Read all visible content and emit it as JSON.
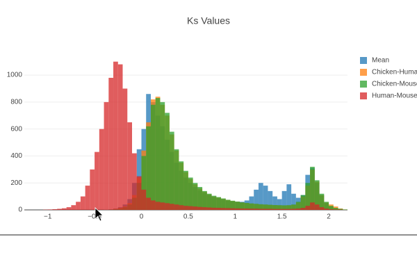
{
  "chart_data": {
    "type": "histogram",
    "title": "Ks Values",
    "bins": [
      -1.25,
      -1.2,
      -1.15,
      -1.1,
      -1.05,
      -1.0,
      -0.95,
      -0.9,
      -0.85,
      -0.8,
      -0.75,
      -0.7,
      -0.65,
      -0.6,
      -0.55,
      -0.5,
      -0.45,
      -0.4,
      -0.35,
      -0.3,
      -0.25,
      -0.2,
      -0.15,
      -0.1,
      -0.05,
      0,
      0.05,
      0.1,
      0.15,
      0.2,
      0.25,
      0.3,
      0.35,
      0.4,
      0.45,
      0.5,
      0.55,
      0.6,
      0.65,
      0.7,
      0.75,
      0.8,
      0.85,
      0.9,
      0.95,
      1.0,
      1.05,
      1.1,
      1.15,
      1.2,
      1.25,
      1.3,
      1.35,
      1.4,
      1.45,
      1.5,
      1.55,
      1.6,
      1.65,
      1.7,
      1.75,
      1.8,
      1.85,
      1.9,
      1.95,
      2.0,
      2.05,
      2.1,
      2.15,
      2.2
    ],
    "series": [
      {
        "name": "Mean",
        "color": "#1f77b4",
        "values": [
          0,
          0,
          0,
          0,
          0,
          0,
          0,
          0,
          0,
          0,
          0,
          0,
          0,
          0,
          0,
          0,
          0,
          2,
          5,
          10,
          20,
          40,
          80,
          200,
          450,
          600,
          860,
          800,
          700,
          620,
          520,
          430,
          350,
          290,
          240,
          200,
          170,
          145,
          125,
          110,
          95,
          85,
          75,
          68,
          62,
          58,
          60,
          70,
          100,
          150,
          200,
          180,
          140,
          100,
          80,
          140,
          190,
          120,
          90,
          110,
          260,
          310,
          200,
          110,
          50,
          25,
          12,
          5,
          2
        ]
      },
      {
        "name": "Chicken-Human",
        "color": "#ff7f0e",
        "values": [
          0,
          0,
          0,
          0,
          0,
          0,
          0,
          0,
          0,
          0,
          0,
          0,
          0,
          0,
          0,
          0,
          0,
          1,
          3,
          8,
          15,
          25,
          50,
          110,
          240,
          440,
          650,
          820,
          840,
          780,
          700,
          560,
          440,
          350,
          280,
          230,
          190,
          160,
          135,
          115,
          100,
          92,
          82,
          74,
          66,
          60,
          55,
          50,
          47,
          44,
          41,
          39,
          37,
          35,
          34,
          33,
          34,
          38,
          55,
          100,
          180,
          300,
          210,
          110,
          55,
          40,
          25,
          10,
          3
        ]
      },
      {
        "name": "Chicken-Mouse",
        "color": "#2ca02c",
        "values": [
          0,
          0,
          0,
          0,
          0,
          0,
          0,
          0,
          0,
          0,
          0,
          0,
          0,
          0,
          0,
          0,
          0,
          0,
          2,
          5,
          10,
          20,
          40,
          90,
          200,
          400,
          620,
          780,
          830,
          800,
          720,
          580,
          450,
          360,
          290,
          240,
          200,
          170,
          140,
          120,
          105,
          95,
          85,
          75,
          68,
          62,
          56,
          52,
          48,
          45,
          42,
          40,
          38,
          36,
          35,
          34,
          35,
          40,
          60,
          110,
          200,
          320,
          220,
          120,
          60,
          30,
          15,
          8,
          3
        ]
      },
      {
        "name": "Human-Mouse",
        "color": "#d62728",
        "values": [
          0,
          0,
          0,
          0,
          2,
          3,
          5,
          8,
          12,
          20,
          35,
          60,
          100,
          180,
          300,
          430,
          600,
          800,
          980,
          1100,
          1080,
          900,
          650,
          420,
          250,
          150,
          90,
          70,
          60,
          55,
          50,
          45,
          40,
          35,
          30,
          28,
          25,
          22,
          20,
          18,
          16,
          15,
          14,
          13,
          12,
          11,
          10,
          10,
          9,
          9,
          8,
          8,
          8,
          7,
          7,
          7,
          7,
          8,
          10,
          15,
          30,
          55,
          40,
          20,
          10,
          5,
          3,
          2,
          0
        ]
      }
    ],
    "xlim": [
      -1.25,
      2.2
    ],
    "ylim": [
      0,
      1150
    ],
    "xticks": [
      {
        "value": -1,
        "label": "−1"
      },
      {
        "value": -0.5,
        "label": "−0.5"
      },
      0,
      0.5,
      1,
      1.5,
      2
    ],
    "yticks": [
      0,
      200,
      400,
      600,
      800,
      1000
    ],
    "grid": true
  }
}
